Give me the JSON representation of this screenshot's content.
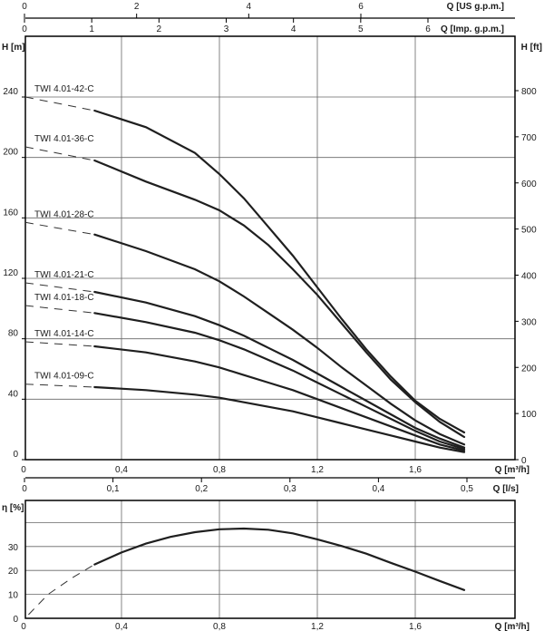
{
  "chart_data": [
    {
      "type": "line",
      "x_axis": {
        "label": "Q [m³/h]",
        "range": [
          0,
          2.0
        ],
        "ticks": [
          "0",
          "0,4",
          "0,8",
          "1,2",
          "1,6"
        ],
        "tick_values": [
          0,
          0.4,
          0.8,
          1.2,
          1.6
        ]
      },
      "y_axis_left": {
        "label": "H [m]",
        "range": [
          0,
          260
        ],
        "ticks": [
          "0",
          "40",
          "80",
          "120",
          "160",
          "200",
          "240"
        ],
        "tick_values": [
          0,
          40,
          80,
          120,
          160,
          200,
          240
        ]
      },
      "y_axis_right": {
        "label": "H [ft]",
        "ticks": [
          "0",
          "100",
          "200",
          "300",
          "400",
          "500",
          "600",
          "700",
          "800"
        ],
        "tick_values": [
          0,
          100,
          200,
          300,
          400,
          500,
          600,
          700,
          800
        ]
      },
      "top_axis_us": {
        "label": "Q [US g.p.m.]",
        "ticks": [
          "0",
          "2",
          "4",
          "6"
        ],
        "tick_values": [
          0,
          2,
          4,
          6
        ]
      },
      "top_axis_imp": {
        "label": "Q [Imp. g.p.m.]",
        "ticks": [
          "0",
          "1",
          "2",
          "3",
          "4",
          "5",
          "6"
        ],
        "tick_values": [
          0,
          1,
          2,
          3,
          4,
          5,
          6
        ]
      },
      "grid": true,
      "series": [
        {
          "name": "TWI 4.01-42-C",
          "x": [
            0.29,
            0.5,
            0.7,
            0.8,
            0.9,
            1.0,
            1.1,
            1.2,
            1.3,
            1.4,
            1.5,
            1.6,
            1.7,
            1.8
          ],
          "y": [
            231,
            220,
            203,
            189,
            173,
            154,
            135,
            114,
            93,
            73,
            55,
            39,
            27,
            18
          ]
        },
        {
          "name": "TWI 4.01-36-C",
          "x": [
            0.29,
            0.5,
            0.7,
            0.8,
            0.9,
            1.0,
            1.1,
            1.2,
            1.3,
            1.4,
            1.5,
            1.6,
            1.7,
            1.8
          ],
          "y": [
            198,
            184,
            172,
            165,
            155,
            142,
            126,
            109,
            90,
            71,
            53,
            38,
            25,
            15
          ]
        },
        {
          "name": "TWI 4.01-28-C",
          "x": [
            0.29,
            0.5,
            0.7,
            0.8,
            0.9,
            1.0,
            1.1,
            1.2,
            1.3,
            1.4,
            1.5,
            1.6,
            1.7,
            1.8
          ],
          "y": [
            149,
            138,
            126,
            118,
            108,
            97,
            86,
            74,
            61,
            49,
            37,
            26,
            17,
            10
          ]
        },
        {
          "name": "TWI 4.01-21-C",
          "x": [
            0.29,
            0.5,
            0.7,
            0.8,
            0.9,
            1.0,
            1.1,
            1.2,
            1.3,
            1.4,
            1.5,
            1.6,
            1.7,
            1.8
          ],
          "y": [
            111,
            104,
            95,
            89,
            82,
            74,
            66,
            57,
            48,
            39,
            30,
            21,
            14,
            8
          ]
        },
        {
          "name": "TWI 4.01-18-C",
          "x": [
            0.29,
            0.5,
            0.7,
            0.8,
            0.9,
            1.0,
            1.1,
            1.2,
            1.3,
            1.4,
            1.5,
            1.6,
            1.7,
            1.8
          ],
          "y": [
            97,
            91,
            84,
            79,
            73,
            66,
            59,
            51,
            43,
            35,
            27,
            19,
            12,
            7
          ]
        },
        {
          "name": "TWI 4.01-14-C",
          "x": [
            0.29,
            0.5,
            0.7,
            0.8,
            0.9,
            1.0,
            1.1,
            1.2,
            1.3,
            1.4,
            1.5,
            1.6,
            1.7,
            1.8
          ],
          "y": [
            75,
            71,
            65,
            61,
            56,
            51,
            46,
            40,
            34,
            28,
            22,
            16,
            10,
            6
          ]
        },
        {
          "name": "TWI 4.01-09-C",
          "x": [
            0.29,
            0.5,
            0.7,
            0.8,
            0.9,
            1.0,
            1.1,
            1.2,
            1.3,
            1.4,
            1.5,
            1.6,
            1.7,
            1.8
          ],
          "y": [
            48,
            46,
            43,
            41,
            38,
            35,
            32,
            28,
            24,
            20,
            16,
            12,
            8,
            5
          ]
        }
      ],
      "extrapolated_start": {
        "x": 0,
        "y": [
          240,
          207,
          157,
          117,
          102,
          78,
          50
        ]
      }
    },
    {
      "type": "line",
      "x_axis": {
        "label": "Q [m³/h]",
        "range": [
          0,
          2.0
        ],
        "ticks": [
          "0",
          "0,4",
          "0,8",
          "1,2",
          "1,6"
        ],
        "tick_values": [
          0,
          0.4,
          0.8,
          1.2,
          1.6
        ]
      },
      "top_axis_ls": {
        "label": "Q [l/s]",
        "ticks": [
          "0",
          "0,1",
          "0,2",
          "0,3",
          "0,4",
          "0,5"
        ],
        "tick_values": [
          0,
          0.1,
          0.2,
          0.3,
          0.4,
          0.5
        ]
      },
      "y_axis_left": {
        "label": "η [%]",
        "range": [
          0,
          45
        ],
        "ticks": [
          "0",
          "10",
          "20",
          "30"
        ],
        "tick_values": [
          0,
          10,
          20,
          30
        ]
      },
      "grid": true,
      "series": [
        {
          "x": [
            0.29,
            0.4,
            0.5,
            0.6,
            0.7,
            0.8,
            0.9,
            1.0,
            1.1,
            1.2,
            1.3,
            1.4,
            1.5,
            1.6,
            1.7,
            1.8
          ],
          "y": [
            22.5,
            27.5,
            31.2,
            34,
            36,
            37.2,
            37.5,
            37,
            35.5,
            33,
            30.2,
            27,
            23.2,
            19.5,
            15.6,
            11.8
          ]
        }
      ],
      "extrapolated_start": {
        "x": [
          0.02,
          0.1,
          0.2,
          0.29
        ],
        "y": [
          1.5,
          10,
          17,
          22.5
        ]
      }
    }
  ]
}
